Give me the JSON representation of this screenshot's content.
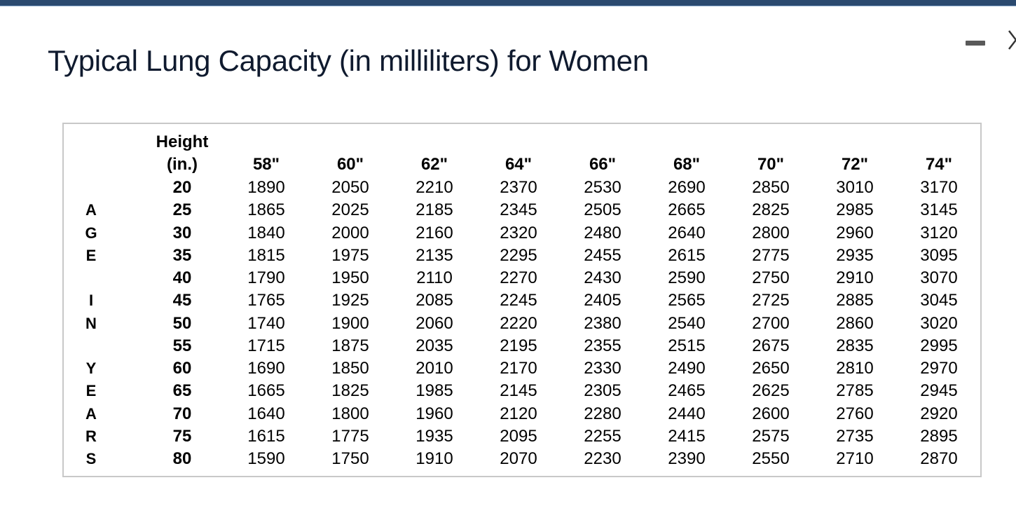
{
  "title": "Typical Lung Capacity (in milliliters) for Women",
  "table": {
    "corner_header_line1": "Height",
    "corner_header_line2": "(in.)",
    "heights": [
      "58\"",
      "60\"",
      "62\"",
      "64\"",
      "66\"",
      "68\"",
      "70\"",
      "72\"",
      "74\""
    ],
    "side_label_letters": [
      "A",
      "G",
      "E",
      "",
      "I",
      "N",
      "",
      "Y",
      "E",
      "A",
      "R",
      "S"
    ],
    "rows": [
      {
        "age": "20",
        "values": [
          "1890",
          "2050",
          "2210",
          "2370",
          "2530",
          "2690",
          "2850",
          "3010",
          "3170"
        ]
      },
      {
        "age": "25",
        "values": [
          "1865",
          "2025",
          "2185",
          "2345",
          "2505",
          "2665",
          "2825",
          "2985",
          "3145"
        ]
      },
      {
        "age": "30",
        "values": [
          "1840",
          "2000",
          "2160",
          "2320",
          "2480",
          "2640",
          "2800",
          "2960",
          "3120"
        ]
      },
      {
        "age": "35",
        "values": [
          "1815",
          "1975",
          "2135",
          "2295",
          "2455",
          "2615",
          "2775",
          "2935",
          "3095"
        ]
      },
      {
        "age": "40",
        "values": [
          "1790",
          "1950",
          "2110",
          "2270",
          "2430",
          "2590",
          "2750",
          "2910",
          "3070"
        ]
      },
      {
        "age": "45",
        "values": [
          "1765",
          "1925",
          "2085",
          "2245",
          "2405",
          "2565",
          "2725",
          "2885",
          "3045"
        ]
      },
      {
        "age": "50",
        "values": [
          "1740",
          "1900",
          "2060",
          "2220",
          "2380",
          "2540",
          "2700",
          "2860",
          "3020"
        ]
      },
      {
        "age": "55",
        "values": [
          "1715",
          "1875",
          "2035",
          "2195",
          "2355",
          "2515",
          "2675",
          "2835",
          "2995"
        ]
      },
      {
        "age": "60",
        "values": [
          "1690",
          "1850",
          "2010",
          "2170",
          "2330",
          "2490",
          "2650",
          "2810",
          "2970"
        ]
      },
      {
        "age": "65",
        "values": [
          "1665",
          "1825",
          "1985",
          "2145",
          "2305",
          "2465",
          "2625",
          "2785",
          "2945"
        ]
      },
      {
        "age": "70",
        "values": [
          "1640",
          "1800",
          "1960",
          "2120",
          "2280",
          "2440",
          "2600",
          "2760",
          "2920"
        ]
      },
      {
        "age": "75",
        "values": [
          "1615",
          "1775",
          "1935",
          "2095",
          "2255",
          "2415",
          "2575",
          "2735",
          "2895"
        ]
      },
      {
        "age": "80",
        "values": [
          "1590",
          "1750",
          "1910",
          "2070",
          "2230",
          "2390",
          "2550",
          "2710",
          "2870"
        ]
      }
    ]
  },
  "icons": {
    "minimize": "minimize-icon",
    "close": "close-icon"
  }
}
